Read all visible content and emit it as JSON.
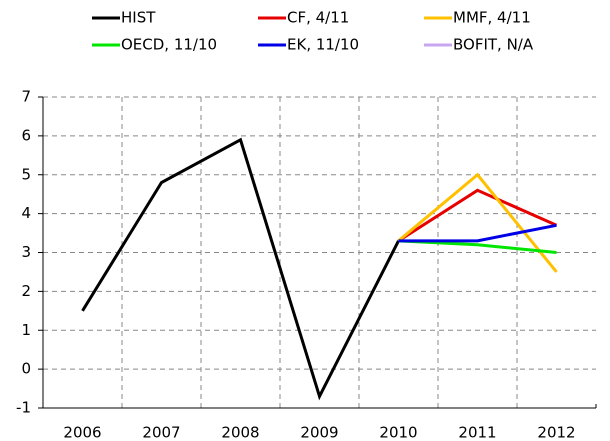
{
  "chart_data": {
    "type": "line",
    "categories": [
      "2006",
      "2007",
      "2008",
      "2009",
      "2010",
      "2011",
      "2012"
    ],
    "series": [
      {
        "name": "HIST",
        "color": "#000000",
        "values": [
          1.5,
          4.8,
          5.9,
          -0.7,
          3.3,
          null,
          null
        ]
      },
      {
        "name": "CF, 4/11",
        "color": "#e60000",
        "values": [
          null,
          null,
          null,
          null,
          3.3,
          4.6,
          3.7
        ]
      },
      {
        "name": "MMF, 4/11",
        "color": "#ffc000",
        "values": [
          null,
          null,
          null,
          null,
          3.3,
          5.0,
          2.5
        ]
      },
      {
        "name": "OECD, 11/10",
        "color": "#00e600",
        "values": [
          null,
          null,
          null,
          null,
          3.3,
          3.2,
          3.0
        ]
      },
      {
        "name": "EK, 11/10",
        "color": "#0000e6",
        "values": [
          null,
          null,
          null,
          null,
          3.3,
          3.3,
          3.7
        ]
      },
      {
        "name": "BOFIT, N/A",
        "color": "#c9a6f2",
        "values": [
          null,
          null,
          null,
          null,
          null,
          null,
          null
        ]
      }
    ],
    "ylim": [
      -1,
      7
    ],
    "yticks": [
      -1,
      0,
      1,
      2,
      3,
      4,
      5,
      6,
      7
    ],
    "grid": true
  }
}
